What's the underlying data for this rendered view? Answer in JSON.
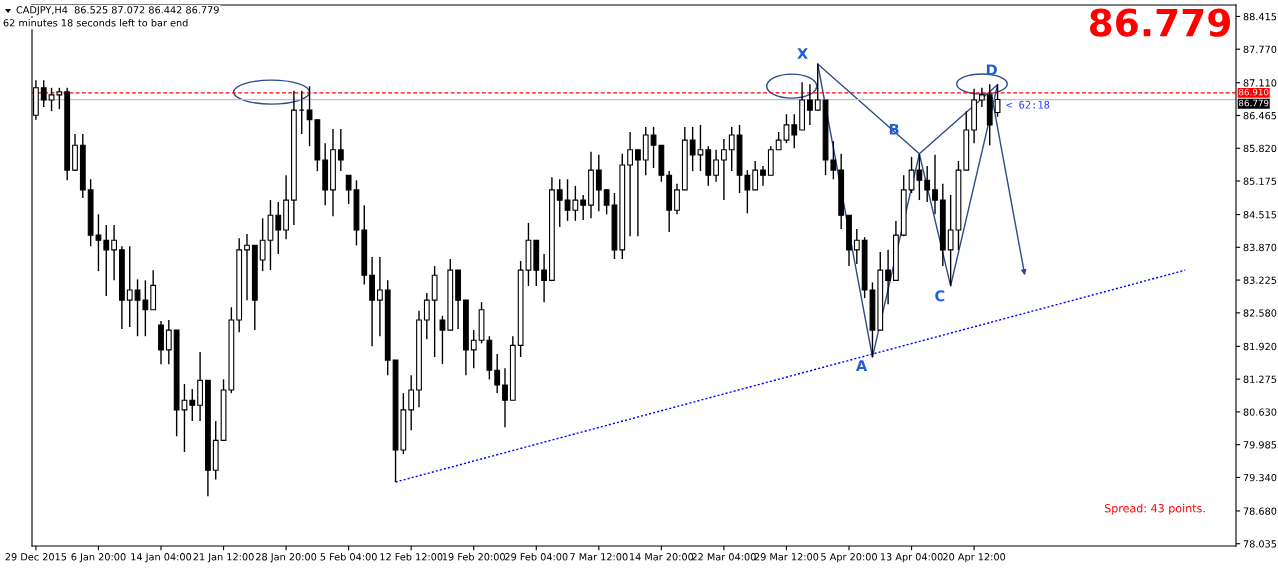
{
  "chart_data": {
    "type": "candlestick",
    "title": "CADJPY,H4  86.525 87.072 86.442 86.779",
    "subtitle": "62 minutes 18 seconds left to bar end",
    "color": "#000000",
    "categories": [
      "29 Dec 2015",
      null,
      null,
      null,
      null,
      null,
      null,
      null,
      "6 Jan 20:00",
      null,
      null,
      null,
      null,
      null,
      null,
      null,
      "14 Jan 04:00",
      null,
      null,
      null,
      null,
      null,
      null,
      null,
      "21 Jan 12:00",
      null,
      null,
      null,
      null,
      null,
      null,
      null,
      "28 Jan 20:00",
      null,
      null,
      null,
      null,
      null,
      null,
      null,
      "5 Feb 04:00",
      null,
      null,
      null,
      null,
      null,
      null,
      null,
      "12 Feb 12:00",
      null,
      null,
      null,
      null,
      null,
      null,
      null,
      "19 Feb 20:00",
      null,
      null,
      null,
      null,
      null,
      null,
      null,
      "29 Feb 04:00",
      null,
      null,
      null,
      null,
      null,
      null,
      null,
      "7 Mar 12:00",
      null,
      null,
      null,
      null,
      null,
      null,
      null,
      "14 Mar 20:00",
      null,
      null,
      null,
      null,
      null,
      null,
      null,
      "22 Mar 04:00",
      null,
      null,
      null,
      null,
      null,
      null,
      null,
      "29 Mar 12:00",
      null,
      null,
      null,
      null,
      null,
      null,
      null,
      "5 Apr 20:00",
      null,
      null,
      null,
      null,
      null,
      null,
      null,
      "13 Apr 04:00",
      null,
      null,
      null,
      null,
      null,
      null,
      null,
      "20 Apr 12:00",
      null,
      null,
      null,
      null,
      null,
      null,
      null,
      null,
      null,
      null,
      null,
      null,
      null,
      null,
      null,
      null,
      null,
      null,
      null,
      null,
      null,
      null,
      null,
      null,
      null,
      null,
      null,
      null,
      null,
      null,
      null,
      null,
      null
    ],
    "ohlc": [
      [
        86.47,
        87.16,
        86.38,
        87.01
      ],
      [
        87.01,
        87.16,
        86.63,
        86.77
      ],
      [
        86.77,
        87.01,
        86.55,
        86.87
      ],
      [
        86.87,
        87.01,
        86.59,
        86.93
      ],
      [
        86.93,
        87.01,
        85.19,
        85.39
      ],
      [
        85.39,
        86.1,
        85.37,
        85.88
      ],
      [
        85.88,
        86.1,
        84.84,
        85.0
      ],
      [
        85.0,
        85.21,
        83.89,
        84.11
      ],
      [
        84.11,
        84.52,
        83.4,
        84.01
      ],
      [
        84.01,
        84.31,
        82.91,
        83.82
      ],
      [
        83.82,
        84.31,
        83.22,
        84.01
      ],
      [
        83.82,
        83.89,
        82.26,
        82.83
      ],
      [
        82.83,
        83.89,
        82.3,
        83.03
      ],
      [
        83.03,
        83.24,
        82.12,
        82.83
      ],
      [
        82.83,
        83.22,
        82.12,
        82.64
      ],
      [
        82.64,
        83.42,
        82.64,
        83.12
      ],
      [
        82.34,
        82.42,
        81.57,
        81.85
      ],
      [
        81.85,
        82.44,
        81.57,
        82.24
      ],
      [
        82.24,
        82.24,
        80.15,
        80.67
      ],
      [
        80.67,
        81.18,
        79.84,
        80.86
      ],
      [
        80.86,
        81.08,
        80.45,
        80.76
      ],
      [
        80.76,
        81.81,
        80.45,
        81.25
      ],
      [
        81.25,
        81.25,
        78.97,
        79.48
      ],
      [
        79.48,
        80.45,
        79.3,
        80.07
      ],
      [
        80.07,
        81.27,
        80.07,
        81.06
      ],
      [
        81.06,
        82.69,
        81.0,
        82.44
      ],
      [
        82.44,
        84.05,
        82.2,
        83.82
      ],
      [
        83.82,
        84.13,
        82.83,
        83.91
      ],
      [
        83.91,
        83.91,
        82.24,
        82.83
      ],
      [
        83.62,
        84.44,
        83.4,
        84.01
      ],
      [
        84.01,
        84.8,
        83.42,
        84.5
      ],
      [
        84.5,
        84.76,
        83.74,
        84.21
      ],
      [
        84.21,
        85.29,
        84.03,
        84.8
      ],
      [
        84.8,
        86.95,
        84.31,
        86.57
      ],
      [
        86.57,
        86.95,
        86.1,
        86.57
      ],
      [
        86.57,
        87.04,
        85.86,
        86.38
      ],
      [
        86.38,
        86.38,
        85.37,
        85.59
      ],
      [
        85.59,
        85.92,
        84.7,
        85.0
      ],
      [
        85.0,
        86.2,
        84.48,
        85.79
      ],
      [
        85.79,
        86.2,
        85.37,
        85.59
      ],
      [
        85.29,
        85.29,
        84.72,
        85.0
      ],
      [
        85.0,
        85.19,
        83.91,
        84.21
      ],
      [
        84.21,
        84.7,
        83.14,
        83.32
      ],
      [
        83.32,
        83.68,
        81.92,
        82.83
      ],
      [
        82.83,
        83.68,
        82.12,
        83.03
      ],
      [
        83.03,
        83.22,
        81.35,
        81.65
      ],
      [
        81.65,
        81.65,
        79.25,
        79.88
      ],
      [
        79.88,
        81.0,
        79.8,
        80.67
      ],
      [
        80.67,
        81.35,
        80.27,
        81.06
      ],
      [
        81.06,
        82.62,
        80.72,
        82.44
      ],
      [
        82.44,
        82.97,
        82.06,
        82.83
      ],
      [
        82.83,
        83.5,
        81.71,
        83.32
      ],
      [
        82.44,
        82.52,
        81.57,
        82.24
      ],
      [
        82.24,
        83.64,
        82.24,
        83.42
      ],
      [
        83.42,
        83.42,
        82.26,
        82.83
      ],
      [
        82.83,
        82.83,
        81.35,
        81.85
      ],
      [
        81.85,
        82.24,
        81.49,
        82.04
      ],
      [
        82.04,
        82.79,
        81.98,
        82.64
      ],
      [
        82.04,
        82.12,
        81.27,
        81.45
      ],
      [
        81.45,
        81.77,
        81.0,
        81.16
      ],
      [
        81.16,
        81.49,
        80.33,
        80.86
      ],
      [
        80.86,
        82.12,
        80.86,
        81.94
      ],
      [
        81.94,
        83.6,
        81.71,
        83.42
      ],
      [
        83.42,
        84.35,
        83.11,
        84.01
      ],
      [
        84.01,
        84.01,
        83.11,
        83.42
      ],
      [
        83.42,
        83.74,
        82.79,
        83.22
      ],
      [
        83.22,
        85.25,
        83.22,
        85.0
      ],
      [
        85.0,
        85.21,
        84.27,
        84.8
      ],
      [
        84.8,
        85.21,
        84.39,
        84.6
      ],
      [
        84.6,
        85.08,
        84.39,
        84.8
      ],
      [
        84.8,
        84.9,
        84.41,
        84.7
      ],
      [
        84.7,
        85.75,
        84.44,
        85.39
      ],
      [
        85.39,
        85.69,
        84.58,
        85.0
      ],
      [
        85.0,
        85.02,
        84.52,
        84.7
      ],
      [
        84.7,
        84.94,
        83.64,
        83.82
      ],
      [
        83.82,
        85.71,
        83.64,
        85.49
      ],
      [
        85.49,
        86.14,
        84.09,
        85.79
      ],
      [
        85.79,
        85.79,
        84.09,
        85.59
      ],
      [
        85.59,
        86.24,
        85.29,
        86.08
      ],
      [
        86.08,
        86.24,
        85.43,
        85.88
      ],
      [
        85.88,
        85.88,
        85.16,
        85.29
      ],
      [
        85.29,
        85.37,
        84.17,
        84.6
      ],
      [
        84.6,
        85.12,
        84.52,
        85.0
      ],
      [
        85.0,
        86.24,
        85.0,
        85.98
      ],
      [
        85.98,
        86.24,
        85.37,
        85.69
      ],
      [
        85.69,
        86.28,
        85.37,
        85.79
      ],
      [
        85.79,
        85.86,
        85.08,
        85.29
      ],
      [
        85.29,
        85.79,
        85.16,
        85.59
      ],
      [
        85.59,
        86.0,
        84.8,
        85.79
      ],
      [
        85.79,
        86.24,
        85.37,
        86.08
      ],
      [
        86.08,
        86.28,
        84.94,
        85.29
      ],
      [
        85.29,
        85.39,
        84.54,
        85.0
      ],
      [
        85.0,
        85.57,
        85.0,
        85.39
      ],
      [
        85.39,
        85.47,
        85.08,
        85.29
      ],
      [
        85.29,
        85.86,
        85.29,
        85.79
      ],
      [
        85.79,
        86.14,
        85.79,
        85.98
      ],
      [
        85.98,
        86.49,
        85.92,
        86.28
      ],
      [
        86.28,
        86.49,
        85.82,
        86.08
      ],
      [
        86.18,
        87.12,
        86.18,
        86.77
      ],
      [
        86.77,
        87.08,
        86.28,
        86.57
      ],
      [
        86.57,
        87.48,
        86.57,
        86.77
      ],
      [
        86.77,
        86.77,
        85.29,
        85.59
      ],
      [
        85.59,
        85.96,
        85.21,
        85.39
      ],
      [
        85.39,
        85.71,
        84.23,
        84.5
      ],
      [
        84.5,
        84.5,
        83.5,
        83.82
      ],
      [
        83.82,
        84.23,
        83.54,
        84.01
      ],
      [
        84.01,
        84.07,
        82.87,
        83.03
      ],
      [
        83.03,
        83.18,
        81.71,
        82.24
      ],
      [
        82.24,
        83.78,
        82.24,
        83.42
      ],
      [
        83.42,
        83.82,
        82.75,
        83.22
      ],
      [
        83.22,
        84.39,
        83.22,
        84.11
      ],
      [
        84.11,
        85.29,
        84.09,
        85.0
      ],
      [
        85.0,
        85.65,
        84.94,
        85.39
      ],
      [
        85.39,
        85.71,
        84.8,
        85.19
      ],
      [
        85.19,
        85.47,
        84.76,
        85.0
      ],
      [
        85.0,
        85.69,
        84.52,
        84.8
      ],
      [
        84.8,
        85.12,
        83.5,
        83.82
      ],
      [
        83.82,
        84.9,
        83.11,
        84.21
      ],
      [
        84.21,
        85.57,
        83.82,
        85.39
      ],
      [
        85.39,
        86.55,
        85.39,
        86.18
      ],
      [
        86.18,
        86.99,
        85.92,
        86.77
      ],
      [
        86.77,
        87.01,
        86.63,
        86.87
      ],
      [
        86.87,
        87.08,
        85.88,
        86.28
      ],
      [
        86.525,
        87.072,
        86.442,
        86.779
      ],
      null,
      null,
      null,
      null,
      null,
      null,
      null,
      null,
      null,
      null,
      null,
      null,
      null,
      null,
      null,
      null,
      null,
      null,
      null,
      null,
      null,
      null,
      null,
      null,
      null,
      null,
      null,
      null,
      null,
      null
    ],
    "series": [
      {
        "type": "line",
        "color": "#0000ff",
        "line_style": "dotted",
        "values": [
          null,
          null,
          null,
          null,
          null,
          null,
          null,
          null,
          null,
          null,
          null,
          null,
          null,
          null,
          null,
          null,
          null,
          null,
          null,
          null,
          null,
          null,
          null,
          null,
          null,
          null,
          null,
          null,
          null,
          null,
          null,
          null,
          null,
          null,
          null,
          null,
          null,
          null,
          null,
          null,
          null,
          null,
          null,
          null,
          null,
          null,
          79.25,
          null,
          null,
          null,
          null,
          null,
          null,
          null,
          null,
          null,
          null,
          null,
          null,
          null,
          null,
          null,
          null,
          null,
          null,
          null,
          null,
          null,
          null,
          null,
          null,
          null,
          null,
          null,
          null,
          null,
          null,
          null,
          null,
          null,
          null,
          null,
          null,
          null,
          null,
          null,
          null,
          null,
          null,
          null,
          null,
          null,
          null,
          null,
          null,
          null,
          null,
          null,
          null,
          null,
          null,
          null,
          null,
          null,
          null,
          null,
          null,
          null,
          null,
          null,
          null,
          null,
          null,
          null,
          null,
          null,
          null,
          null,
          null,
          null,
          null,
          null,
          null,
          null,
          null,
          null,
          null,
          null,
          null,
          null,
          null,
          null,
          null,
          null,
          null,
          null,
          null,
          null,
          null,
          null,
          null,
          null,
          null,
          null,
          null,
          null,
          null,
          83.42,
          null,
          null,
          null,
          null,
          null,
          null
        ]
      },
      {
        "type": "line",
        "color": "#2e4a87",
        "line_style": "solid",
        "values": [
          null,
          null,
          null,
          null,
          null,
          null,
          null,
          null,
          null,
          null,
          null,
          null,
          null,
          null,
          null,
          null,
          null,
          null,
          null,
          null,
          null,
          null,
          null,
          null,
          null,
          null,
          null,
          null,
          null,
          null,
          null,
          null,
          null,
          null,
          null,
          null,
          null,
          null,
          null,
          null,
          null,
          null,
          null,
          null,
          null,
          null,
          null,
          null,
          null,
          null,
          null,
          null,
          null,
          null,
          null,
          null,
          null,
          null,
          null,
          null,
          null,
          null,
          null,
          null,
          null,
          null,
          null,
          null,
          null,
          null,
          null,
          null,
          null,
          null,
          null,
          null,
          null,
          null,
          null,
          null,
          null,
          null,
          null,
          null,
          null,
          null,
          null,
          null,
          null,
          null,
          null,
          null,
          null,
          null,
          null,
          null,
          null,
          null,
          null,
          null,
          87.48,
          null,
          null,
          null,
          null,
          null,
          null,
          81.71,
          null,
          null,
          null,
          null,
          null,
          85.71,
          null,
          null,
          null,
          83.11,
          null,
          null,
          null,
          null,
          null,
          87.07,
          null,
          null,
          null,
          null,
          null,
          null,
          null,
          null,
          null,
          null,
          null,
          null,
          null,
          null,
          null,
          null,
          null,
          null,
          null,
          null,
          null,
          null,
          null,
          null,
          null,
          null,
          null,
          null,
          null,
          null
        ]
      },
      {
        "type": "line",
        "color": "#2e4a87",
        "line_style": "solid",
        "values": [
          null,
          null,
          null,
          null,
          null,
          null,
          null,
          null,
          null,
          null,
          null,
          null,
          null,
          null,
          null,
          null,
          null,
          null,
          null,
          null,
          null,
          null,
          null,
          null,
          null,
          null,
          null,
          null,
          null,
          null,
          null,
          null,
          null,
          null,
          null,
          null,
          null,
          null,
          null,
          null,
          null,
          null,
          null,
          null,
          null,
          null,
          null,
          null,
          null,
          null,
          null,
          null,
          null,
          null,
          null,
          null,
          null,
          null,
          null,
          null,
          null,
          null,
          null,
          null,
          null,
          null,
          null,
          null,
          null,
          null,
          null,
          null,
          null,
          null,
          null,
          null,
          null,
          null,
          null,
          null,
          null,
          null,
          null,
          null,
          null,
          null,
          null,
          null,
          null,
          null,
          null,
          null,
          null,
          null,
          null,
          null,
          null,
          null,
          null,
          null,
          87.48,
          null,
          null,
          null,
          null,
          null,
          null,
          null,
          null,
          null,
          null,
          null,
          null,
          85.71,
          null,
          null,
          null,
          null,
          null,
          null,
          null,
          null,
          null,
          87.07,
          null,
          null,
          null,
          null,
          null,
          null,
          null,
          null,
          null,
          null,
          null,
          null,
          null,
          null,
          null,
          null,
          null,
          null,
          null,
          null,
          null,
          null,
          null,
          null,
          null,
          null,
          null,
          null,
          null,
          null
        ]
      }
    ],
    "ylim": [
      77.99,
      88.64
    ],
    "yticks": [
      {
        "value": 88.415,
        "label": "88.415"
      },
      {
        "value": 87.77,
        "label": "87.770"
      },
      {
        "value": 87.11,
        "label": "87.110"
      },
      {
        "value": 86.465,
        "label": "86.465"
      },
      {
        "value": 85.82,
        "label": "85.820"
      },
      {
        "value": 85.175,
        "label": "85.175"
      },
      {
        "value": 84.515,
        "label": "84.515"
      },
      {
        "value": 83.87,
        "label": "83.870"
      },
      {
        "value": 83.225,
        "label": "83.225"
      },
      {
        "value": 82.58,
        "label": "82.580"
      },
      {
        "value": 81.92,
        "label": "81.920"
      },
      {
        "value": 81.275,
        "label": "81.275"
      },
      {
        "value": 80.63,
        "label": "80.630"
      },
      {
        "value": 79.985,
        "label": "79.985"
      },
      {
        "value": 79.34,
        "label": "79.340"
      },
      {
        "value": 78.68,
        "label": "78.680"
      },
      {
        "value": 78.035,
        "label": "78.035"
      }
    ],
    "ref_lines": [
      {
        "axis": "y",
        "value": 86.91,
        "label": "86.910",
        "color": "#ff0000",
        "line_style": "dashed"
      },
      {
        "axis": "y",
        "value": 86.779,
        "label": "86.779",
        "color": "#c0c0c0",
        "line_style": "solid"
      }
    ],
    "annotations": [
      "86.779",
      "< 62:18",
      "Spread: 43 points.",
      "X",
      "A",
      "B",
      "C",
      "D"
    ]
  }
}
